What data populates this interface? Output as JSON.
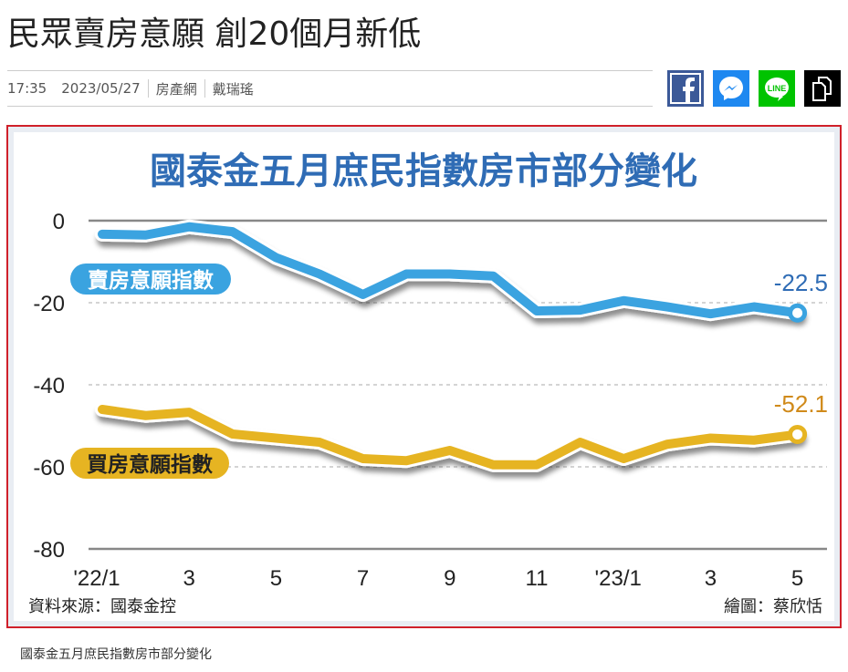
{
  "article": {
    "headline": "民眾賣房意願 創20個月新低",
    "time": "17:35",
    "date": "2023/05/27",
    "category": "房產網",
    "author": "戴瑞瑤",
    "share": [
      {
        "icon": "facebook-icon",
        "color": "#3b5998"
      },
      {
        "icon": "messenger-icon",
        "color": "#1e88f0"
      },
      {
        "icon": "line-icon",
        "color": "#00c300",
        "label": "LINE"
      },
      {
        "icon": "copy-icon",
        "color": "#000000"
      }
    ],
    "caption": "國泰金五月庶民指數房市部分變化"
  },
  "chart_data": {
    "type": "line",
    "title": "國泰金五月庶民指數房市部分變化",
    "x": [
      "'22/1",
      "2",
      "3",
      "4",
      "5",
      "6",
      "7",
      "8",
      "9",
      "10",
      "11",
      "12",
      "'23/1",
      "2",
      "3",
      "4",
      "5"
    ],
    "xtick_labels": [
      "'22/1",
      "3",
      "5",
      "7",
      "9",
      "11",
      "'23/1",
      "3",
      "5"
    ],
    "yticks": [
      0,
      -20,
      -40,
      -60,
      -80
    ],
    "ylim": [
      -80,
      0
    ],
    "series": [
      {
        "name": "賣房意願指數",
        "color": "#3aa3e0",
        "values": [
          -3.3,
          -3.5,
          -1.5,
          -2.7,
          -9,
          -13,
          -18,
          -13,
          -13,
          -13.5,
          -22,
          -21.8,
          -19.5,
          -21,
          -22.7,
          -21,
          -22.5
        ],
        "end_label": "-22.5"
      },
      {
        "name": "買房意願指數",
        "color": "#e6b422",
        "values": [
          -46,
          -47.5,
          -46.7,
          -52,
          -53,
          -54,
          -58,
          -58.5,
          -56,
          -59.5,
          -59.5,
          -54,
          -58,
          -54.5,
          -53,
          -53.5,
          -52.1
        ],
        "end_label": "-52.1"
      }
    ],
    "source": "資料來源：國泰金控",
    "credit": "繪圖：蔡欣恬",
    "grid": "horizontal dashed"
  }
}
